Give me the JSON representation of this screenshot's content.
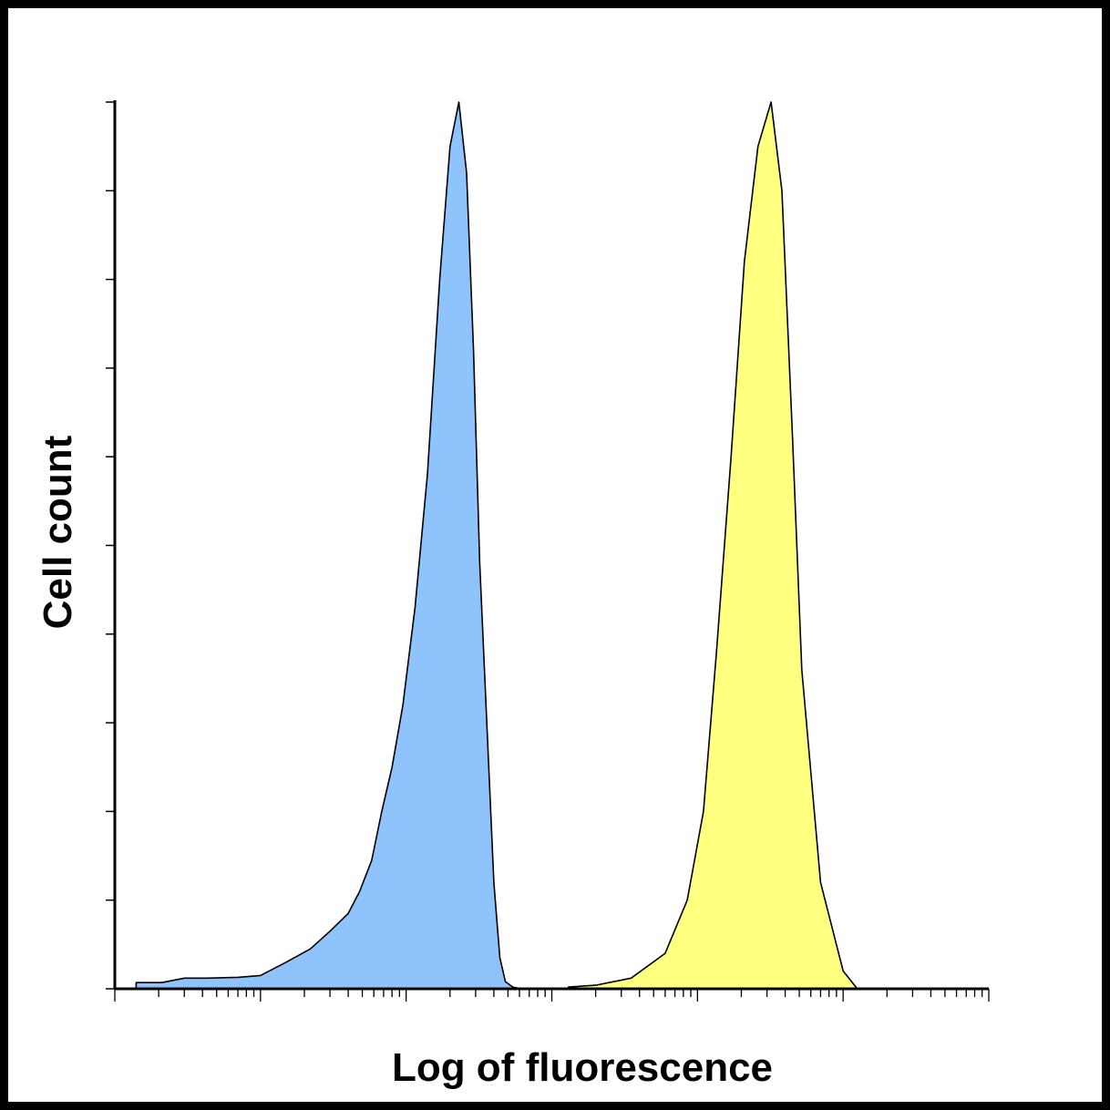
{
  "chart_data": {
    "type": "area",
    "xlabel": "Log of fluorescence",
    "ylabel": "Cell count",
    "x_scale": "log",
    "xlim": [
      1,
      1000000
    ],
    "ylim": [
      0,
      1
    ],
    "grid": false,
    "legend": "none",
    "series": [
      {
        "color": "#8fc3fb",
        "stroke": "#000000",
        "x": [
          1.4,
          2.1,
          3.0,
          4.3,
          7,
          10,
          15,
          22,
          30,
          40,
          48,
          58,
          68,
          80,
          95,
          115,
          140,
          170,
          200,
          230,
          260,
          290,
          320,
          360,
          400,
          440,
          480,
          540,
          620
        ],
        "y": [
          0.007,
          0.007,
          0.012,
          0.012,
          0.013,
          0.015,
          0.03,
          0.045,
          0.065,
          0.085,
          0.11,
          0.145,
          0.2,
          0.25,
          0.32,
          0.43,
          0.58,
          0.8,
          0.95,
          1.0,
          0.92,
          0.72,
          0.48,
          0.29,
          0.12,
          0.035,
          0.008,
          0.002,
          0.0
        ]
      },
      {
        "color": "#ffff80",
        "stroke": "#000000",
        "x": [
          1300,
          2000,
          3500,
          6000,
          8500,
          11000,
          13500,
          17000,
          21000,
          26000,
          32000,
          38000,
          45000,
          52000,
          70000,
          100000,
          125000
        ],
        "y": [
          0.002,
          0.004,
          0.012,
          0.04,
          0.1,
          0.2,
          0.38,
          0.6,
          0.82,
          0.95,
          1.0,
          0.9,
          0.62,
          0.36,
          0.12,
          0.02,
          0.0
        ]
      }
    ]
  }
}
